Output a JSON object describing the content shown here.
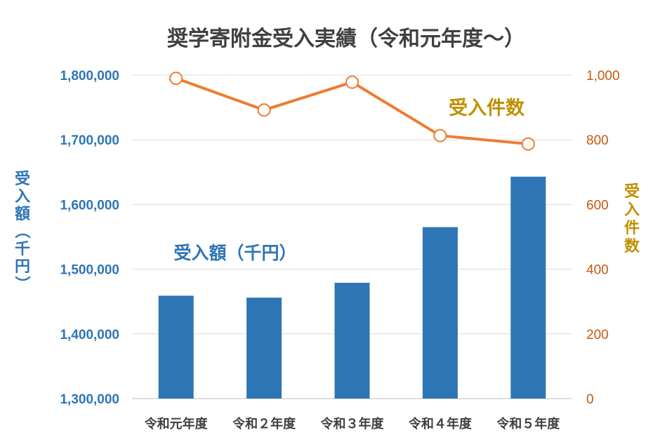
{
  "chart_data": {
    "type": "bar",
    "title": "奨学寄附金受入実績（令和元年度～）",
    "categories": [
      "令和元年度",
      "令和２年度",
      "令和３年度",
      "令和４年度",
      "令和５年度"
    ],
    "series": [
      {
        "name": "受入額（千円）",
        "type": "bar",
        "axis": "left",
        "color": "#2E75B6",
        "values": [
          1459000,
          1456000,
          1479000,
          1565000,
          1643000
        ]
      },
      {
        "name": "受入件数",
        "type": "line",
        "axis": "right",
        "color": "#ED7D31",
        "values": [
          990,
          892,
          978,
          813,
          787
        ]
      }
    ],
    "y_left": {
      "label": "受入額（千円）",
      "ylim": [
        1300000,
        1800000
      ],
      "ticks": [
        "1,300,000",
        "1,400,000",
        "1,500,000",
        "1,600,000",
        "1,700,000",
        "1,800,000"
      ],
      "color": "#2E75B6"
    },
    "y_right": {
      "label": "受入件数",
      "ylim": [
        0,
        1000
      ],
      "ticks": [
        "0",
        "200",
        "400",
        "600",
        "800",
        "1,000"
      ],
      "color": "#C55A11",
      "label_color": "#BF9000"
    },
    "grid": true,
    "legend": "none"
  }
}
